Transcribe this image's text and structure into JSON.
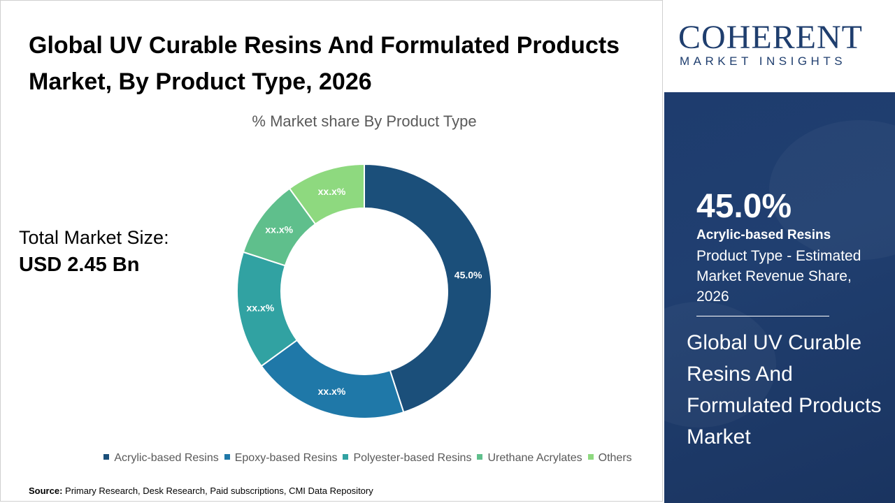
{
  "title": "Global UV Curable Resins And Formulated Products Market, By Product Type, 2026",
  "market_size": {
    "label": "Total Market Size:",
    "value": "USD 2.45 Bn"
  },
  "source": {
    "label": "Source:",
    "text": "Primary Research, Desk Research, Paid subscriptions, CMI Data Repository"
  },
  "logo": {
    "name": "COHERENT",
    "tagline": "MARKET INSIGHTS"
  },
  "highlight": {
    "value": "45.0%",
    "name": "Acrylic-based Resins",
    "description": "Product Type - Estimated Market Revenue Share, 2026"
  },
  "market_name": "Global UV Curable Resins And Formulated Products Market",
  "chart_data": {
    "type": "pie",
    "subtitle": "% Market share By Product Type",
    "donut": true,
    "categories": [
      "Acrylic-based Resins",
      "Epoxy-based Resins",
      "Polyester-based Resins",
      "Urethane Acrylates",
      "Others"
    ],
    "values": [
      45.0,
      20.0,
      15.0,
      10.0,
      10.0
    ],
    "data_labels": [
      "45.0%",
      "xx.x%",
      "xx.x%",
      "xx.x%",
      "xx.x%"
    ],
    "colors": [
      "#1b4f7a",
      "#1f78a8",
      "#31a2a2",
      "#5fbf8c",
      "#8ed97f"
    ],
    "legend": "bottom"
  }
}
